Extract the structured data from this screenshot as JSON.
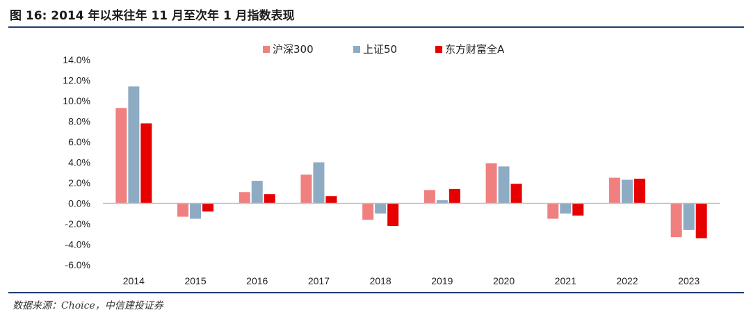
{
  "figure": {
    "title": "图 16: 2014 年以来往年 11 月至次年 1 月指数表现",
    "source": "数据来源：Choice，中信建投证券"
  },
  "colors": {
    "hs300": "#f08080",
    "sz50": "#8eabc4",
    "dfcf": "#e60000",
    "axis": "#bfbfbf",
    "rule": "#1f3d73"
  },
  "chart_data": {
    "type": "bar",
    "title": "",
    "xlabel": "",
    "ylabel": "",
    "categories": [
      "2014",
      "2015",
      "2016",
      "2017",
      "2018",
      "2019",
      "2020",
      "2021",
      "2022",
      "2023"
    ],
    "series": [
      {
        "name": "沪深300",
        "values": [
          9.3,
          -1.3,
          1.1,
          2.8,
          -1.6,
          1.3,
          3.9,
          -1.5,
          2.5,
          -3.3
        ]
      },
      {
        "name": "上证50",
        "values": [
          11.4,
          -1.5,
          2.2,
          4.0,
          -1.0,
          0.3,
          3.6,
          -1.0,
          2.3,
          -2.6
        ]
      },
      {
        "name": "东方财富全A",
        "values": [
          7.8,
          -0.8,
          0.9,
          0.7,
          -2.2,
          1.4,
          1.9,
          -1.2,
          2.4,
          -3.4
        ]
      }
    ],
    "ylim": [
      -6,
      14
    ],
    "yticks": [
      "14.0%",
      "12.0%",
      "10.0%",
      "8.0%",
      "6.0%",
      "4.0%",
      "2.0%",
      "0.0%",
      "-2.0%",
      "-4.0%",
      "-6.0%"
    ],
    "ytick_values": [
      14,
      12,
      10,
      8,
      6,
      4,
      2,
      0,
      -2,
      -4,
      -6
    ],
    "legend_position": "top-center",
    "grid": false
  }
}
